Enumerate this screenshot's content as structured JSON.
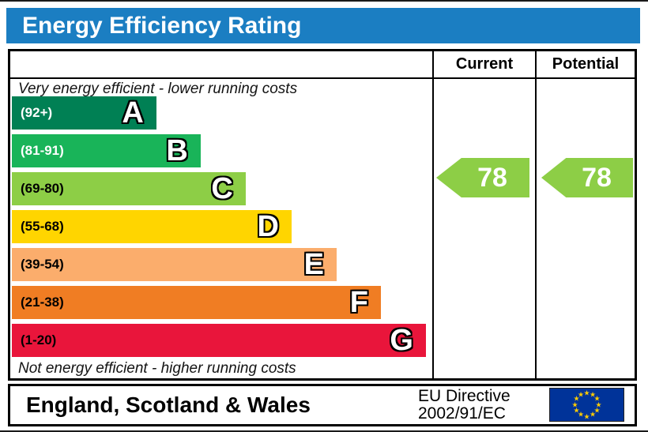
{
  "title": {
    "text": "Energy Efficiency Rating",
    "bg_color": "#1b7ec2",
    "text_color": "#ffffff"
  },
  "table": {
    "columns": {
      "current": "Current",
      "potential": "Potential"
    },
    "top_note": "Very energy efficient - lower running costs",
    "bottom_note": "Not energy efficient - higher running costs",
    "bands": [
      {
        "letter": "A",
        "range": "(92+)",
        "color": "#008054",
        "label_color": "#ffffff",
        "width_pct": 34.3
      },
      {
        "letter": "B",
        "range": "(81-91)",
        "color": "#19b459",
        "label_color": "#ffffff",
        "width_pct": 44.8
      },
      {
        "letter": "C",
        "range": "(69-80)",
        "color": "#8dce46",
        "label_color": "#000000",
        "width_pct": 55.5
      },
      {
        "letter": "D",
        "range": "(55-68)",
        "color": "#ffd500",
        "label_color": "#000000",
        "width_pct": 66.4
      },
      {
        "letter": "E",
        "range": "(39-54)",
        "color": "#fbad6c",
        "label_color": "#000000",
        "width_pct": 77.1
      },
      {
        "letter": "F",
        "range": "(21-38)",
        "color": "#f07d23",
        "label_color": "#000000",
        "width_pct": 87.6
      },
      {
        "letter": "G",
        "range": "(1-20)",
        "color": "#e9153b",
        "label_color": "#000000",
        "width_pct": 98.3
      }
    ],
    "current": {
      "value": "78",
      "band": "C",
      "arrow_color": "#8dce46"
    },
    "potential": {
      "value": "78",
      "band": "C",
      "arrow_color": "#8dce46"
    }
  },
  "footer": {
    "region": "England, Scotland & Wales",
    "directive_line1": "EU Directive",
    "directive_line2": "2002/91/EC",
    "eu_flag": {
      "bg_color": "#003399",
      "star_color": "#ffcc00",
      "star_count": 12,
      "star_glyph": "★"
    }
  },
  "chart_data": {
    "type": "bar",
    "title": "Energy Efficiency Rating",
    "categories": [
      "A",
      "B",
      "C",
      "D",
      "E",
      "F",
      "G"
    ],
    "band_ranges": [
      "92+",
      "81-91",
      "69-80",
      "55-68",
      "39-54",
      "21-38",
      "1-20"
    ],
    "band_colors": [
      "#008054",
      "#19b459",
      "#8dce46",
      "#ffd500",
      "#fbad6c",
      "#f07d23",
      "#e9153b"
    ],
    "bar_widths_pct": [
      34.3,
      44.8,
      55.5,
      66.4,
      77.1,
      87.6,
      98.3
    ],
    "series": [
      {
        "name": "Current",
        "values": [
          78
        ],
        "band": "C"
      },
      {
        "name": "Potential",
        "values": [
          78
        ],
        "band": "C"
      }
    ],
    "top_annotation": "Very energy efficient - lower running costs",
    "bottom_annotation": "Not energy efficient - higher running costs",
    "region_note": "England, Scotland & Wales",
    "directive_note": "EU Directive 2002/91/EC",
    "value_range": [
      1,
      100
    ]
  }
}
